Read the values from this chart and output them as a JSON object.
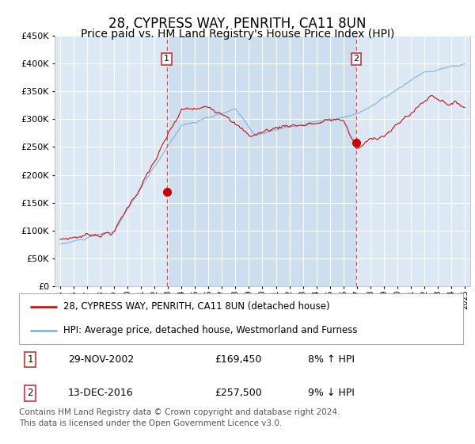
{
  "title": "28, CYPRESS WAY, PENRITH, CA11 8UN",
  "subtitle": "Price paid vs. HM Land Registry's House Price Index (HPI)",
  "legend_line1": "28, CYPRESS WAY, PENRITH, CA11 8UN (detached house)",
  "legend_line2": "HPI: Average price, detached house, Westmorland and Furness",
  "footer": "Contains HM Land Registry data © Crown copyright and database right 2024.\nThis data is licensed under the Open Government Licence v3.0.",
  "sale1_date_label": "29-NOV-2002",
  "sale1_price_label": "£169,450",
  "sale1_hpi_label": "8% ↑ HPI",
  "sale2_date_label": "13-DEC-2016",
  "sale2_price_label": "£257,500",
  "sale2_hpi_label": "9% ↓ HPI",
  "sale1_year": 2002.91,
  "sale1_price": 169450,
  "sale2_year": 2016.95,
  "sale2_price": 257500,
  "ylim": [
    0,
    450000
  ],
  "xlim_start": 1994.6,
  "xlim_end": 2025.4,
  "plot_bg_color": "#dce9f5",
  "grid_color": "#ffffff",
  "red_line_color": "#cc0000",
  "blue_line_color": "#7aafd4",
  "sale_marker_color": "#cc0000",
  "dashed_line_color": "#ee4444",
  "box_edge_color": "#cc3333",
  "title_fontsize": 12,
  "subtitle_fontsize": 10
}
